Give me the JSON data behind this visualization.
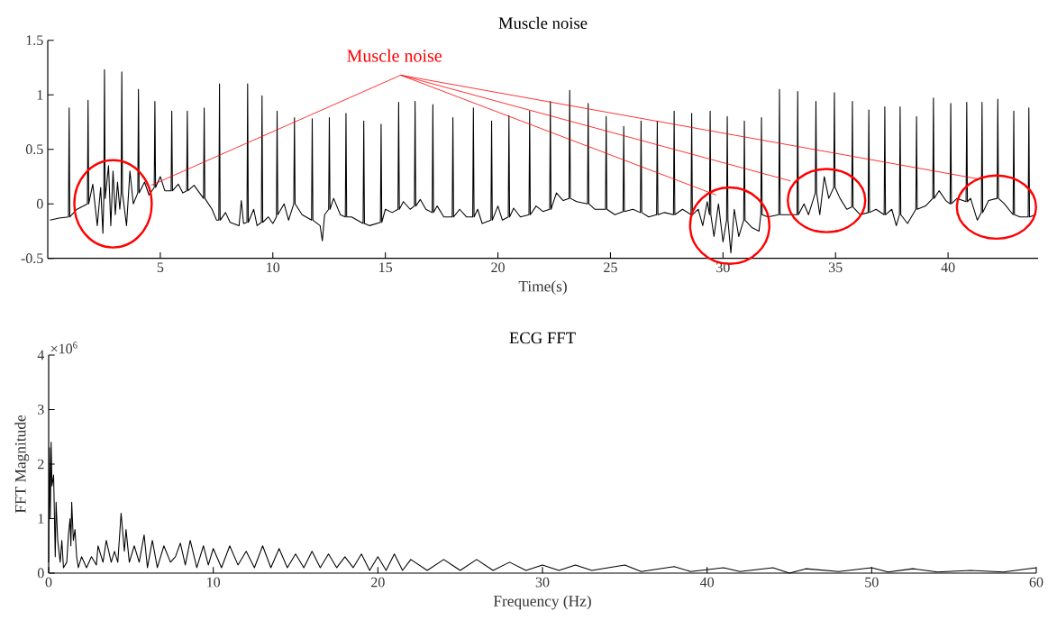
{
  "chart_data": [
    {
      "type": "line",
      "title": "Muscle noise",
      "xlabel": "Time(s)",
      "color": "#000000",
      "xlim": [
        0,
        44
      ],
      "ylim": [
        -0.5,
        1.5
      ],
      "xticks": [
        5,
        10,
        15,
        20,
        25,
        30,
        35,
        40
      ],
      "yticks": [
        -0.5,
        0,
        0.5,
        1,
        1.5
      ],
      "annotations": [
        {
          "text": "Muscle noise",
          "x": 4.6,
          "y": 0.17
        }
      ],
      "x": [
        0.1,
        0.5,
        0.92,
        0.95,
        0.98,
        1.3,
        1.76,
        1.79,
        1.82,
        2.0,
        2.2,
        2.35,
        2.45,
        2.49,
        2.52,
        2.55,
        2.7,
        2.8,
        2.9,
        3.0,
        3.1,
        3.2,
        3.26,
        3.29,
        3.32,
        3.5,
        3.65,
        3.8,
        4.0,
        4.03,
        4.06,
        4.3,
        4.5,
        4.73,
        4.76,
        4.79,
        5.0,
        5.2,
        5.48,
        5.51,
        5.54,
        5.8,
        6.0,
        6.17,
        6.2,
        6.23,
        6.5,
        6.92,
        6.95,
        6.98,
        7.3,
        7.5,
        7.6,
        7.63,
        7.66,
        7.9,
        8.1,
        8.5,
        8.6,
        8.7,
        8.85,
        8.88,
        8.91,
        9.15,
        9.3,
        9.49,
        9.52,
        9.55,
        9.8,
        10.0,
        10.16,
        10.19,
        10.22,
        10.5,
        10.7,
        10.93,
        10.96,
        10.99,
        11.3,
        11.72,
        11.75,
        11.78,
        12.1,
        12.2,
        12.3,
        12.48,
        12.51,
        12.54,
        12.7,
        13.0,
        13.22,
        13.25,
        13.28,
        13.5,
        14.01,
        14.04,
        14.07,
        14.3,
        14.78,
        14.81,
        14.84,
        15.0,
        15.3,
        15.56,
        15.59,
        15.62,
        15.8,
        16.1,
        16.29,
        16.32,
        16.35,
        16.55,
        16.8,
        17.08,
        17.11,
        17.14,
        17.3,
        17.6,
        17.97,
        18.0,
        18.03,
        18.3,
        18.6,
        18.88,
        18.91,
        18.94,
        19.1,
        19.3,
        19.69,
        19.72,
        19.75,
        20.0,
        20.2,
        20.46,
        20.49,
        20.52,
        20.7,
        21.0,
        21.38,
        21.41,
        21.44,
        21.7,
        22.0,
        22.3,
        22.33,
        22.36,
        22.6,
        22.9,
        23.16,
        23.19,
        23.22,
        23.5,
        23.98,
        24.01,
        24.04,
        24.3,
        24.78,
        24.81,
        24.84,
        25.2,
        25.56,
        25.59,
        25.62,
        26.0,
        26.33,
        26.36,
        26.39,
        26.7,
        27.05,
        27.08,
        27.11,
        27.4,
        27.8,
        27.83,
        27.86,
        28.2,
        28.58,
        28.61,
        28.64,
        28.9,
        29.1,
        29.3,
        29.4,
        29.43,
        29.46,
        29.6,
        29.8,
        30.0,
        30.16,
        30.19,
        30.22,
        30.35,
        30.5,
        30.7,
        30.92,
        30.95,
        30.98,
        31.3,
        31.6,
        31.68,
        31.71,
        31.74,
        32.0,
        32.48,
        32.51,
        32.54,
        32.8,
        33.29,
        33.32,
        33.35,
        33.6,
        33.8,
        34.1,
        34.13,
        34.16,
        34.3,
        34.5,
        34.7,
        34.92,
        34.95,
        34.98,
        35.2,
        35.5,
        35.72,
        35.75,
        35.78,
        36.1,
        36.45,
        36.48,
        36.51,
        36.8,
        37.16,
        37.19,
        37.22,
        37.5,
        37.7,
        37.84,
        37.87,
        37.9,
        38.2,
        38.57,
        38.6,
        38.63,
        39.0,
        39.32,
        39.35,
        39.38,
        39.6,
        39.9,
        40.09,
        40.12,
        40.15,
        40.4,
        40.8,
        40.83,
        40.86,
        41.0,
        41.3,
        41.48,
        41.51,
        41.54,
        41.8,
        42.18,
        42.21,
        42.24,
        42.5,
        42.89,
        42.92,
        42.95,
        43.2,
        43.56,
        43.59,
        43.62,
        43.9
      ],
      "values": [
        -0.15,
        -0.13,
        -0.12,
        0.88,
        -0.12,
        -0.05,
        0.0,
        0.95,
        0.0,
        0.18,
        -0.2,
        0.15,
        -0.27,
        0.05,
        1.23,
        0.05,
        0.35,
        -0.2,
        0.3,
        -0.1,
        0.2,
        -0.05,
        0.1,
        1.21,
        0.1,
        -0.2,
        0.3,
        0.0,
        0.1,
        1.05,
        0.1,
        0.2,
        0.08,
        0.15,
        0.94,
        0.15,
        0.25,
        0.12,
        0.12,
        0.85,
        0.12,
        0.18,
        0.1,
        0.12,
        0.85,
        0.12,
        0.17,
        0.05,
        0.88,
        0.05,
        -0.05,
        -0.15,
        -0.15,
        1.1,
        -0.15,
        -0.08,
        -0.17,
        -0.2,
        0.03,
        -0.18,
        -0.17,
        1.1,
        -0.17,
        -0.05,
        -0.2,
        -0.17,
        0.99,
        -0.17,
        -0.12,
        -0.18,
        -0.12,
        0.85,
        -0.1,
        0.0,
        -0.15,
        0.0,
        0.79,
        0.0,
        -0.1,
        -0.15,
        0.78,
        -0.15,
        -0.2,
        -0.34,
        -0.1,
        -0.05,
        0.79,
        -0.05,
        0.05,
        -0.1,
        -0.12,
        0.83,
        -0.12,
        -0.12,
        -0.18,
        0.76,
        -0.18,
        -0.2,
        -0.17,
        0.73,
        -0.17,
        -0.05,
        -0.08,
        -0.05,
        0.93,
        -0.05,
        0.02,
        -0.05,
        -0.02,
        0.94,
        -0.02,
        0.04,
        -0.05,
        -0.08,
        0.91,
        -0.08,
        -0.02,
        -0.12,
        -0.12,
        0.79,
        -0.12,
        -0.05,
        -0.12,
        -0.12,
        0.88,
        -0.12,
        -0.05,
        -0.18,
        -0.15,
        0.76,
        -0.15,
        -0.02,
        -0.15,
        -0.12,
        0.81,
        -0.12,
        -0.04,
        -0.12,
        -0.1,
        0.85,
        -0.1,
        -0.02,
        -0.07,
        -0.05,
        0.94,
        -0.05,
        0.1,
        0.03,
        0.05,
        1.04,
        0.05,
        0.02,
        0.0,
        0.92,
        0.0,
        -0.05,
        -0.05,
        0.8,
        -0.05,
        -0.1,
        -0.07,
        0.71,
        -0.07,
        -0.05,
        -0.08,
        0.76,
        -0.08,
        -0.12,
        -0.1,
        0.76,
        -0.1,
        -0.08,
        -0.1,
        0.85,
        -0.1,
        -0.05,
        -0.1,
        0.83,
        -0.1,
        -0.05,
        -0.2,
        0.02,
        -0.1,
        0.85,
        -0.1,
        -0.3,
        0.0,
        -0.35,
        -0.15,
        0.8,
        -0.15,
        -0.45,
        -0.05,
        -0.3,
        -0.15,
        0.76,
        -0.15,
        -0.22,
        -0.25,
        -0.1,
        0.79,
        -0.1,
        -0.12,
        -0.1,
        1.05,
        -0.1,
        -0.1,
        -0.1,
        1.03,
        -0.1,
        0.0,
        -0.1,
        0.1,
        0.94,
        0.1,
        -0.1,
        0.25,
        0.05,
        0.15,
        1.02,
        0.15,
        0.05,
        -0.05,
        -0.03,
        0.94,
        -0.03,
        -0.1,
        -0.08,
        0.86,
        -0.08,
        -0.05,
        -0.1,
        0.89,
        -0.1,
        -0.05,
        -0.2,
        -0.1,
        0.89,
        -0.1,
        -0.18,
        -0.05,
        0.8,
        -0.05,
        -0.02,
        0.05,
        0.97,
        0.05,
        0.12,
        0.03,
        0.0,
        0.92,
        0.0,
        0.05,
        0.02,
        0.93,
        0.02,
        0.05,
        -0.15,
        -0.08,
        0.93,
        -0.08,
        0.03,
        0.05,
        0.96,
        0.05,
        0.0,
        -0.1,
        0.85,
        -0.1,
        -0.12,
        -0.12,
        0.88,
        -0.12,
        -0.1
      ]
    },
    {
      "type": "line",
      "title": "ECG FFT",
      "xlabel": "Frequency (Hz)",
      "ylabel": "FFT Magnitude",
      "color": "#000000",
      "xlim": [
        0,
        60
      ],
      "ylim": [
        0,
        4
      ],
      "xticks": [
        0,
        10,
        20,
        30,
        40,
        50,
        60
      ],
      "yticks": [
        0,
        1,
        2,
        3,
        4
      ],
      "annotations": [
        "×10$^{6}$"
      ],
      "x": [
        0,
        0.05,
        0.1,
        0.15,
        0.2,
        0.3,
        0.4,
        0.45,
        0.55,
        0.7,
        0.8,
        0.9,
        1.1,
        1.2,
        1.3,
        1.35,
        1.4,
        1.5,
        1.6,
        1.7,
        1.8,
        2.0,
        2.3,
        2.6,
        2.9,
        3.0,
        3.3,
        3.5,
        3.8,
        4.0,
        4.2,
        4.4,
        4.6,
        4.7,
        4.9,
        5.2,
        5.5,
        5.8,
        6.0,
        6.3,
        6.6,
        7.0,
        7.4,
        7.7,
        8.0,
        8.3,
        8.6,
        9.0,
        9.4,
        9.7,
        10.0,
        10.5,
        11.0,
        11.5,
        12.0,
        12.5,
        13.0,
        13.5,
        14.0,
        14.5,
        15.0,
        15.5,
        16.0,
        16.5,
        17.0,
        17.5,
        18.0,
        18.5,
        19.0,
        19.5,
        20.0,
        20.5,
        21.0,
        21.5,
        22,
        23,
        24,
        25,
        26,
        27,
        28,
        29,
        30,
        31,
        32,
        33,
        35,
        36,
        38,
        39,
        41,
        42,
        44,
        45,
        46,
        48,
        50,
        51,
        52.5,
        54,
        56,
        58,
        60
      ],
      "values": [
        0.2,
        2.3,
        1.0,
        2.4,
        1.6,
        1.8,
        0.3,
        1.3,
        0.6,
        0.2,
        0.6,
        0.1,
        0.2,
        0.7,
        1.0,
        0.5,
        1.3,
        0.6,
        0.8,
        0.3,
        0.1,
        0.3,
        0.1,
        0.3,
        0.15,
        0.5,
        0.2,
        0.6,
        0.2,
        0.4,
        0.2,
        1.1,
        0.4,
        0.8,
        0.2,
        0.5,
        0.2,
        0.7,
        0.1,
        0.6,
        0.1,
        0.5,
        0.2,
        0.3,
        0.55,
        0.15,
        0.6,
        0.1,
        0.5,
        0.15,
        0.45,
        0.1,
        0.5,
        0.15,
        0.4,
        0.1,
        0.5,
        0.1,
        0.45,
        0.1,
        0.35,
        0.1,
        0.4,
        0.1,
        0.35,
        0.1,
        0.3,
        0.1,
        0.35,
        0.05,
        0.3,
        0.05,
        0.35,
        0.05,
        0.25,
        0.05,
        0.25,
        0.05,
        0.25,
        0.05,
        0.2,
        0.05,
        0.15,
        0.05,
        0.15,
        0.05,
        0.15,
        0.03,
        0.12,
        0.03,
        0.1,
        0.03,
        0.1,
        0.0,
        0.08,
        0.03,
        0.1,
        0.02,
        0.08,
        0.02,
        0.05,
        0.02,
        0.1
      ]
    }
  ]
}
